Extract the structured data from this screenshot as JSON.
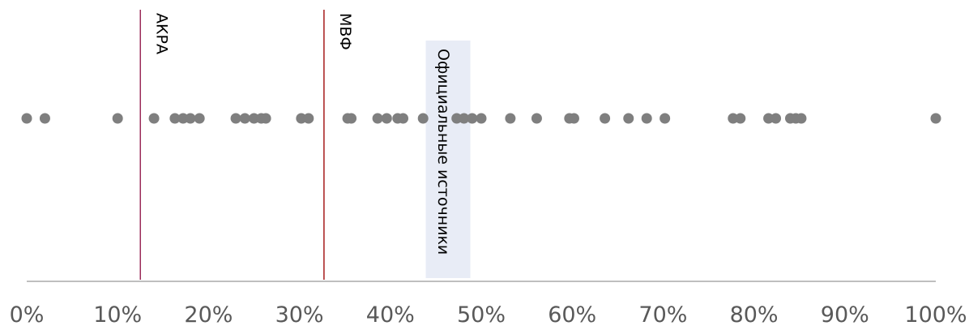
{
  "chart_data": {
    "type": "scatter",
    "xlim": [
      0,
      100
    ],
    "x_tick_labels": [
      "0%",
      "10%",
      "20%",
      "30%",
      "40%",
      "50%",
      "60%",
      "70%",
      "80%",
      "90%",
      "100%"
    ],
    "x_ticks": [
      0,
      10,
      20,
      30,
      40,
      50,
      60,
      70,
      80,
      90,
      100
    ],
    "points": [
      0,
      2,
      10,
      14,
      16.3,
      17.2,
      18,
      19,
      23,
      24,
      25,
      25.8,
      26.3,
      30.2,
      31,
      35.3,
      35.7,
      38.6,
      39.6,
      40.8,
      41.4,
      43.6,
      47.3,
      48.1,
      49,
      50,
      53.2,
      56.1,
      59.7,
      60.2,
      63.6,
      66.2,
      68.2,
      70.2,
      77.7,
      78.5,
      81.6,
      82.4,
      84,
      84.6,
      85.2,
      100
    ],
    "point_color": "#7f7f7f",
    "grid": false,
    "reference_lines": [
      {
        "label": "АКРА",
        "x": 12.5,
        "color": "#9b2d5a"
      },
      {
        "label": "МВФ",
        "x": 32.7,
        "color": "#a61c1c"
      }
    ],
    "highlight_band": {
      "label": "Официальные источники",
      "from": 43.9,
      "to": 48.8,
      "color": "#e8ecf6"
    }
  }
}
